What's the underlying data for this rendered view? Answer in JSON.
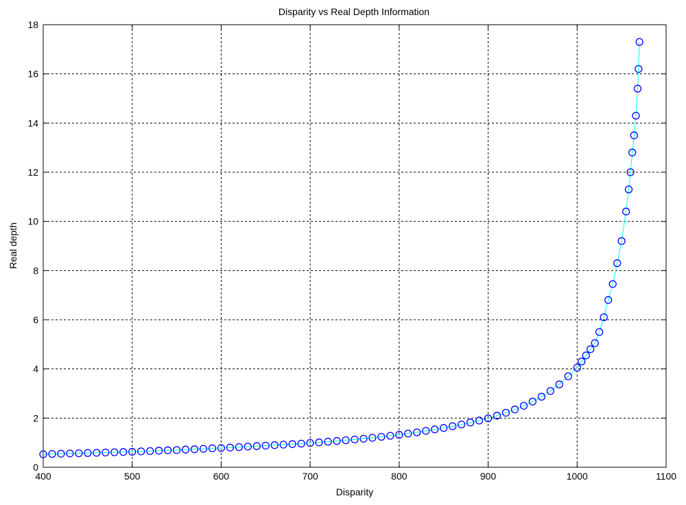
{
  "chart_data": {
    "type": "scatter",
    "title": "Disparity vs Real Depth Information",
    "xlabel": "Disparity",
    "ylabel": "Real depth",
    "xlim": [
      400,
      1100
    ],
    "ylim": [
      0,
      18
    ],
    "xticks": [
      400,
      500,
      600,
      700,
      800,
      900,
      1000,
      1100
    ],
    "yticks": [
      0,
      2,
      4,
      6,
      8,
      10,
      12,
      14,
      16,
      18
    ],
    "grid": true,
    "grid_style": "dashed",
    "marker": "circle",
    "marker_color": "#0000ff",
    "line_color": "#00ffff",
    "series": [
      {
        "x": [
          400,
          410,
          420,
          430,
          440,
          450,
          460,
          470,
          480,
          490,
          500,
          510,
          520,
          530,
          540,
          550,
          560,
          570,
          580,
          590,
          600,
          610,
          620,
          630,
          640,
          650,
          660,
          670,
          680,
          690,
          700,
          710,
          720,
          730,
          740,
          750,
          760,
          770,
          780,
          790,
          800,
          810,
          820,
          830,
          840,
          850,
          860,
          870,
          880,
          890,
          900,
          910,
          920,
          930,
          940,
          950,
          960,
          970,
          980,
          990,
          1000,
          1005,
          1010,
          1015,
          1020,
          1025,
          1030,
          1035,
          1040,
          1045,
          1050,
          1055,
          1058,
          1060,
          1062,
          1064,
          1066,
          1068,
          1069,
          1070
        ],
        "y": [
          0.53,
          0.54,
          0.55,
          0.56,
          0.57,
          0.58,
          0.59,
          0.6,
          0.61,
          0.62,
          0.63,
          0.645,
          0.66,
          0.675,
          0.69,
          0.7,
          0.72,
          0.73,
          0.75,
          0.77,
          0.78,
          0.8,
          0.82,
          0.84,
          0.86,
          0.88,
          0.9,
          0.92,
          0.94,
          0.96,
          0.99,
          1.01,
          1.04,
          1.07,
          1.1,
          1.13,
          1.16,
          1.2,
          1.24,
          1.28,
          1.32,
          1.37,
          1.42,
          1.48,
          1.54,
          1.6,
          1.67,
          1.74,
          1.82,
          1.9,
          1.99,
          2.1,
          2.22,
          2.35,
          2.5,
          2.67,
          2.87,
          3.1,
          3.37,
          3.7,
          4.05,
          4.3,
          4.55,
          4.8,
          5.05,
          5.5,
          6.1,
          6.8,
          7.45,
          8.3,
          9.2,
          10.4,
          11.3,
          12.0,
          12.8,
          13.5,
          14.3,
          15.4,
          16.2,
          17.3
        ]
      }
    ]
  }
}
